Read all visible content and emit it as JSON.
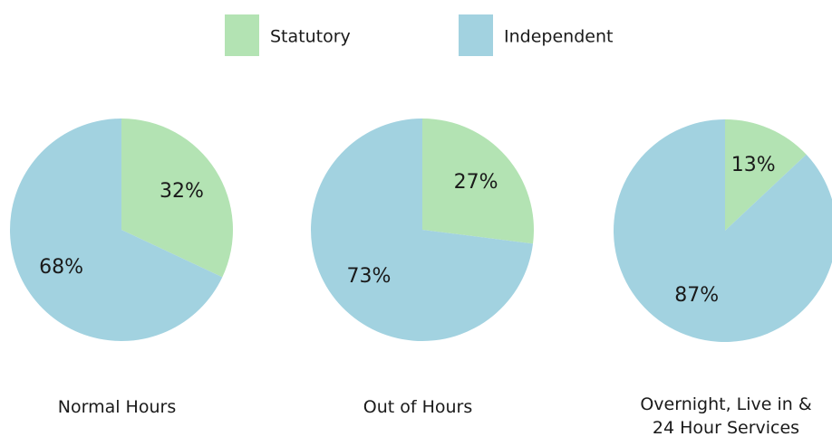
{
  "legend": {
    "names": [
      "Statutory",
      "Independent"
    ],
    "colors": [
      "#b3e3b3",
      "#a2d2e0"
    ]
  },
  "chart_data": [
    {
      "type": "pie",
      "title": "Normal Hours",
      "values": [
        32,
        68
      ],
      "value_labels": [
        "32%",
        "68%"
      ]
    },
    {
      "type": "pie",
      "title": "Out of Hours",
      "values": [
        27,
        73
      ],
      "value_labels": [
        "27%",
        "73%"
      ]
    },
    {
      "type": "pie",
      "title": "Overnight, Live in &\n24 Hour Services",
      "values": [
        13,
        87
      ],
      "value_labels": [
        "13%",
        "87%"
      ]
    }
  ]
}
